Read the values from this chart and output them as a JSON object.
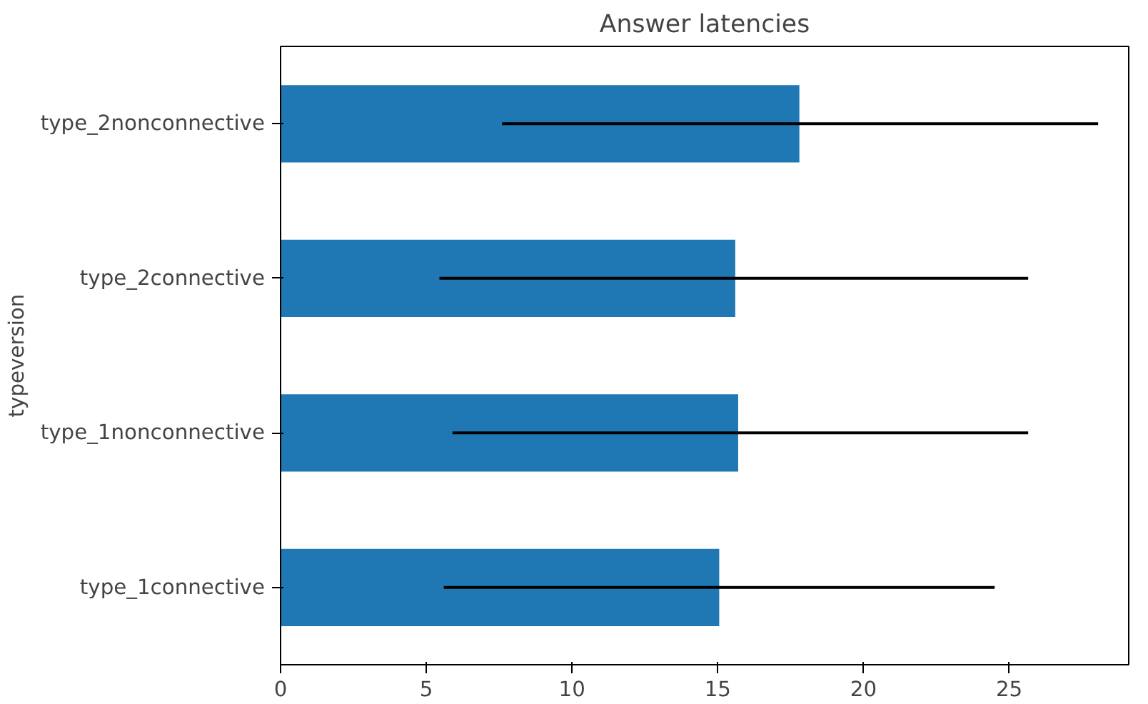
{
  "chart_data": {
    "type": "bar",
    "orientation": "horizontal",
    "title": "Answer latencies",
    "ylabel": "typeversion",
    "categories": [
      "type_2nonconnective",
      "type_2connective",
      "type_1nonconnective",
      "type_1connective"
    ],
    "values": [
      17.8,
      15.6,
      15.7,
      15.05
    ],
    "errors": [
      [
        7.6,
        28.05
      ],
      [
        5.45,
        25.65
      ],
      [
        5.9,
        25.65
      ],
      [
        5.6,
        24.5
      ]
    ],
    "color": "#1f77b4",
    "xlim": [
      0,
      29.1
    ],
    "xticks": [
      0,
      5,
      10,
      15,
      20,
      25
    ],
    "grid": false
  }
}
